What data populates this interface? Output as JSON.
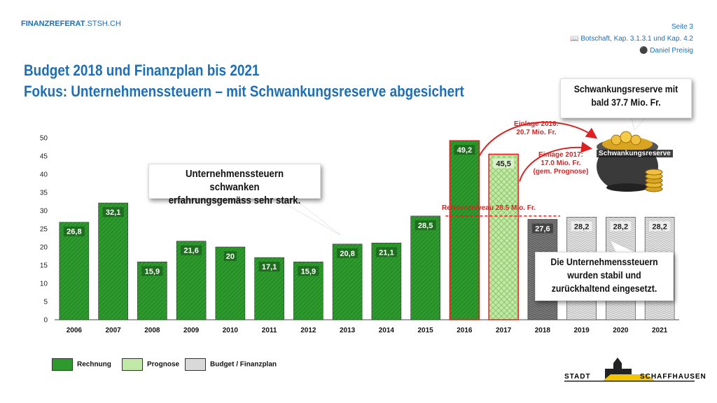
{
  "header": {
    "brand_bold": "FINANZREFERAT",
    "brand_rest": ".STSH.CH",
    "page": "Seite 3",
    "reference": "Botschaft, Kap. 3.1.3.1 und Kap. 4.2",
    "speaker": "Daniel Preisig",
    "reference_icon": "book-icon",
    "speaker_icon": "speech-icon"
  },
  "title": {
    "line1": "Budget 2018 und Finanzplan bis 2021",
    "line2": "Fokus: Unternehmenssteuern – mit Schwankungsreserve abgesichert"
  },
  "callouts": {
    "swing_line1": "Unternehmenssteuern schwanken",
    "swing_line2": "erfahrungsgemäss sehr stark.",
    "stable_line1": "Die Unternehmenssteuern",
    "stable_line2": "wurden stabil und",
    "stable_line3": "zurückhaltend eingesetzt.",
    "reserve_line1": "Schwankungsreserve mit",
    "reserve_line2": "bald 37.7 Mio. Fr."
  },
  "notes": {
    "deposit2016_line1": "Einlage 2016:",
    "deposit2016_line2": "20.7 Mio. Fr.",
    "deposit2017_line1": "Einlage 2017:",
    "deposit2017_line2": "17.0 Mio. Fr.",
    "deposit2017_line3": "(gem. Prognose)",
    "reference_level": "Referenzniveau 28.5 Mio. Fr.",
    "pot_label": "Schwankungsreserve"
  },
  "legend": {
    "actual": "Rechnung",
    "forecast": "Prognose",
    "budget": "Budget / Finanzplan"
  },
  "logo": {
    "left": "STADT",
    "right": "SCHAFFHAUSEN"
  },
  "colors": {
    "brand_blue": "#1c6fb8",
    "actual_green": "#2e9a2e",
    "forecast_green": "#a9dc86",
    "budget_dark": "#6b6b6b",
    "budget_light": "#d9d9d9",
    "highlight_red": "#e02020"
  },
  "chart_data": {
    "type": "bar",
    "categories": [
      "2006",
      "2007",
      "2008",
      "2009",
      "2010",
      "2011",
      "2012",
      "2013",
      "2014",
      "2015",
      "2016",
      "2017",
      "2018",
      "2019",
      "2020",
      "2021"
    ],
    "values": [
      26.8,
      32.1,
      15.9,
      21.6,
      20,
      17.1,
      15.9,
      20.8,
      21.1,
      28.5,
      49.2,
      45.5,
      27.6,
      28.2,
      28.2,
      28.2
    ],
    "labels": [
      "26,8",
      "32,1",
      "15,9",
      "21,6",
      "20",
      "17,1",
      "15,9",
      "20,8",
      "21,1",
      "28,5",
      "49,2",
      "45,5",
      "27,6",
      "28,2",
      "28,2",
      "28,2"
    ],
    "kinds": [
      "actual",
      "actual",
      "actual",
      "actual",
      "actual",
      "actual",
      "actual",
      "actual",
      "actual",
      "actual",
      "actual",
      "forecast",
      "budget-dark",
      "budget",
      "budget",
      "budget"
    ],
    "highlight_outline": [
      "2016",
      "2017"
    ],
    "reference_level": 28.5,
    "ylim": [
      0,
      50
    ],
    "yticks": [
      0,
      5,
      10,
      15,
      20,
      25,
      30,
      35,
      40,
      45,
      50
    ],
    "grid": false,
    "legend_position": "bottom-left"
  }
}
